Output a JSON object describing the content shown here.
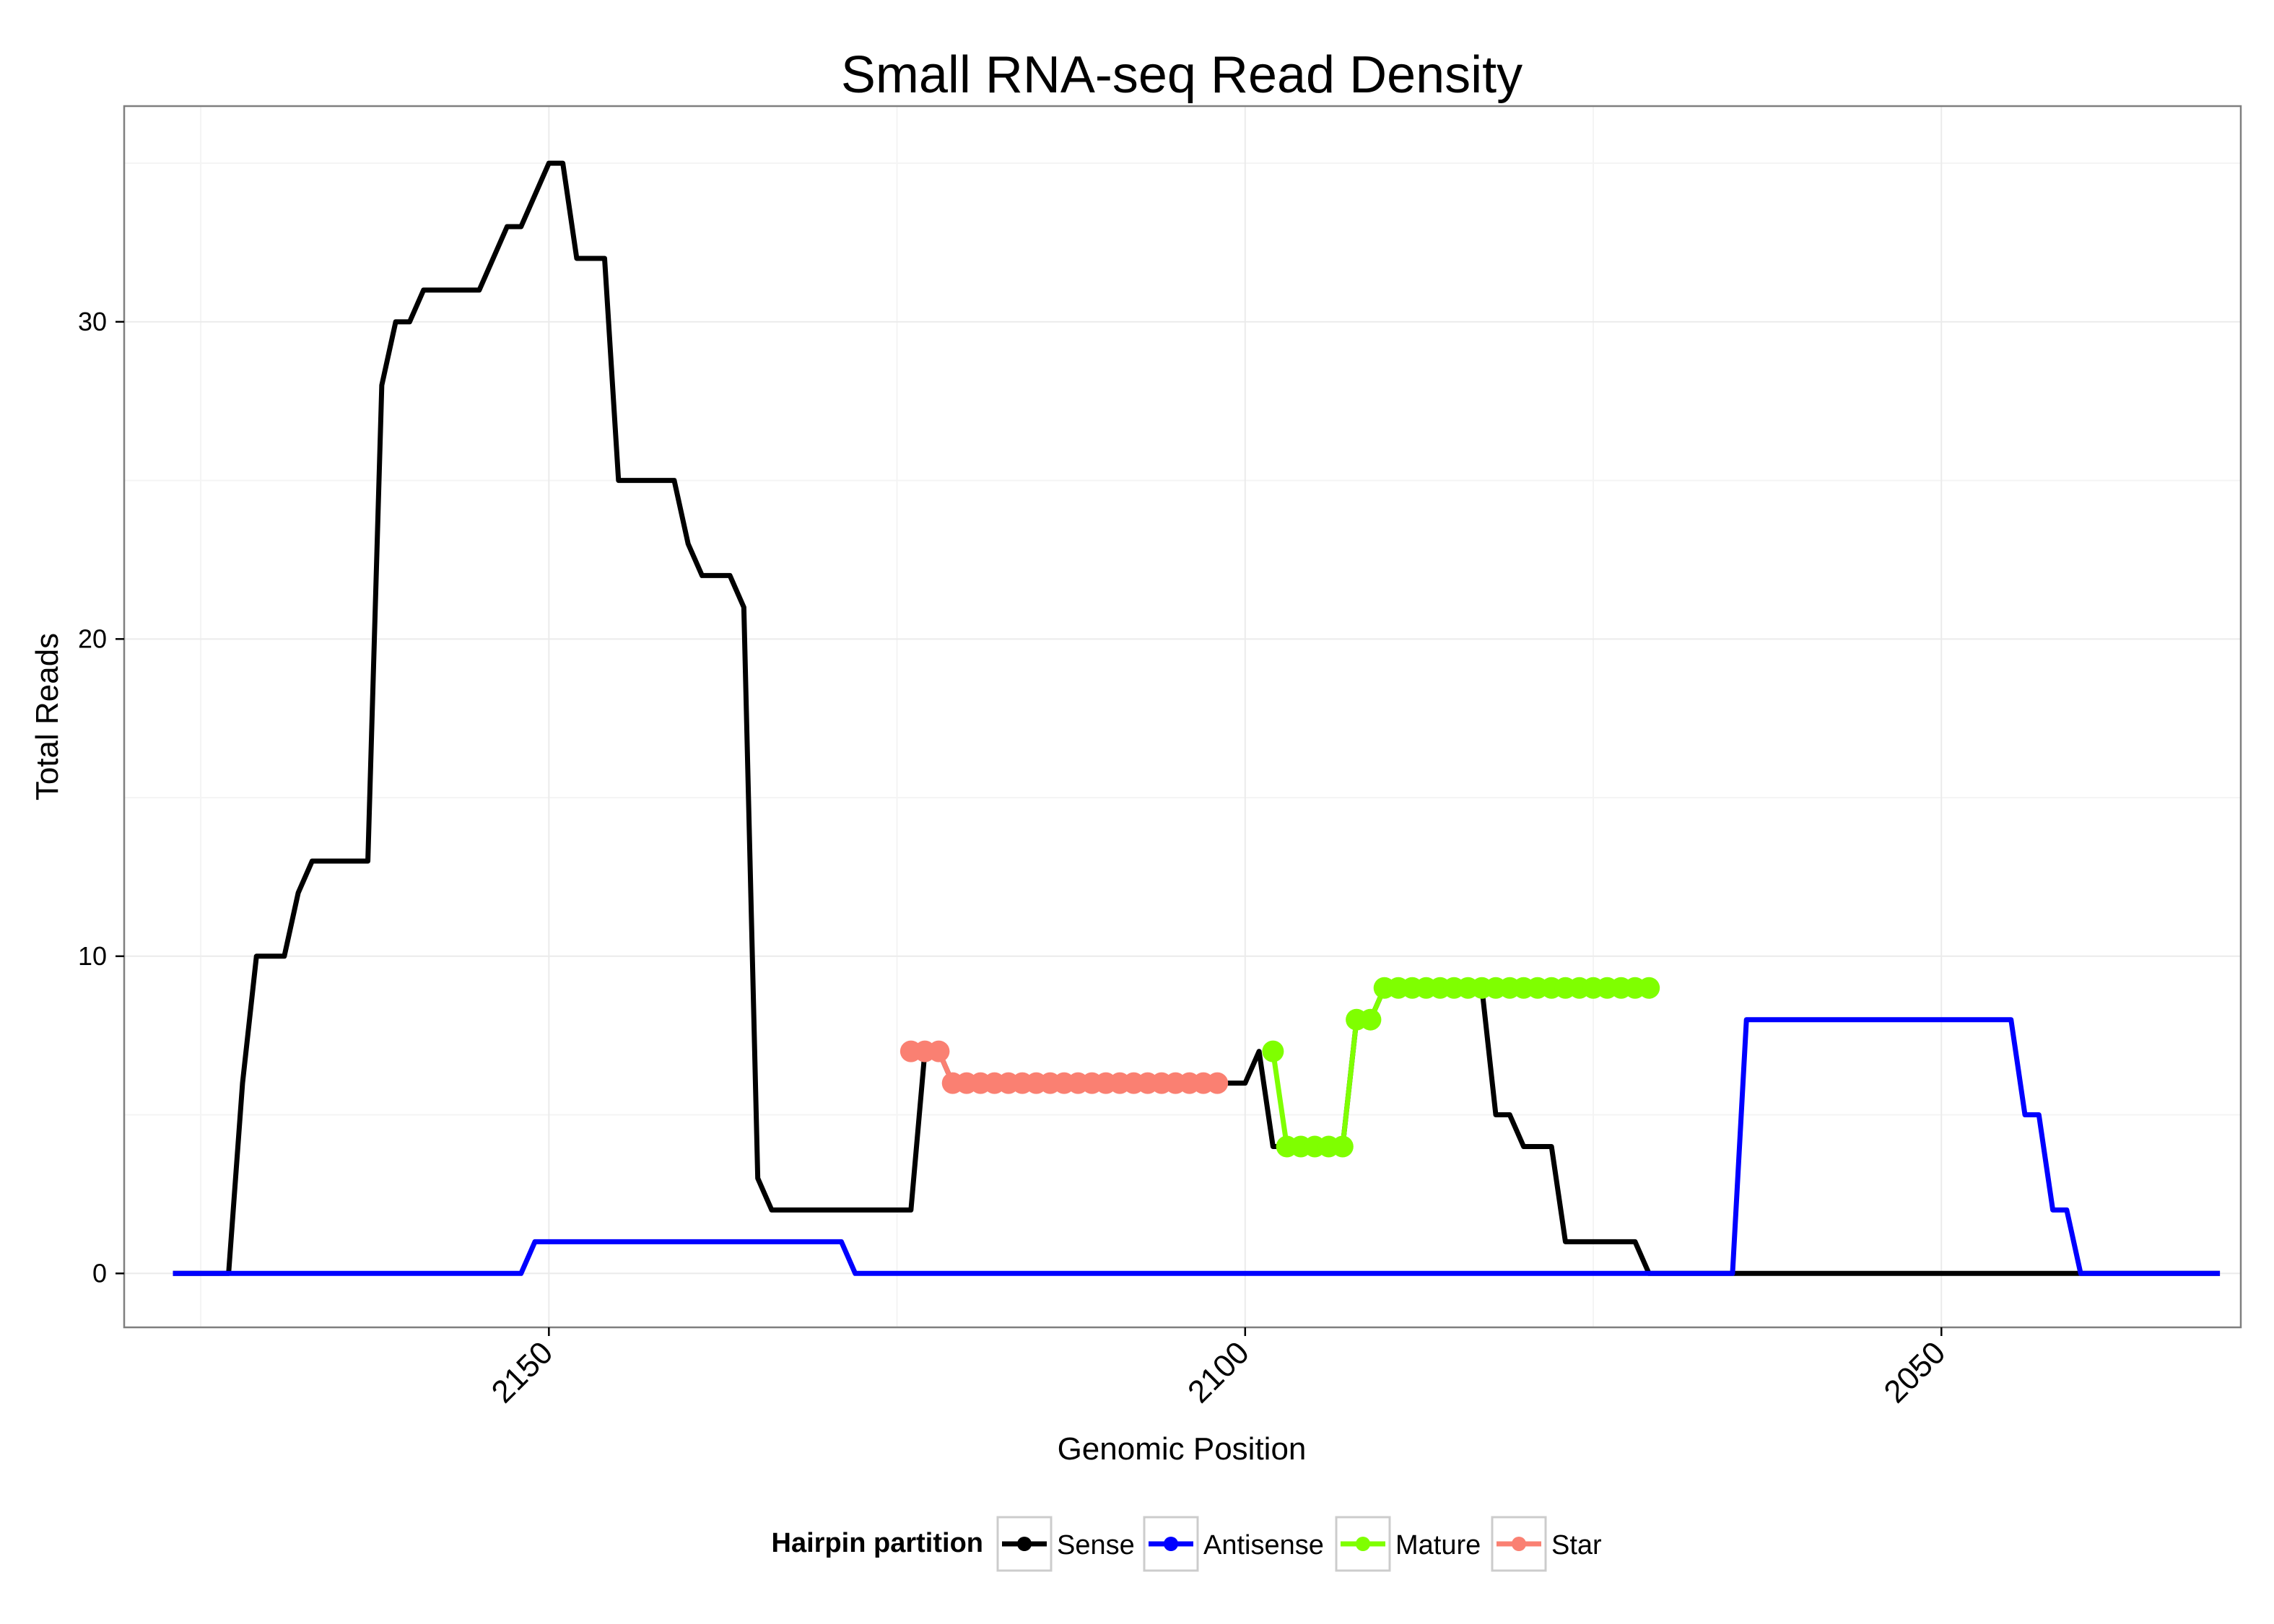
{
  "chart_data": {
    "type": "line",
    "title": "Small RNA-seq Read Density",
    "xlabel": "Genomic Position",
    "ylabel": "Total Reads",
    "x_reversed": true,
    "xlim": [
      2180.5,
      2028.5
    ],
    "ylim": [
      -1.7,
      36.8
    ],
    "x_ticks": [
      2150,
      2100,
      2050
    ],
    "y_ticks": [
      0,
      10,
      20,
      30
    ],
    "grid": true,
    "legend": {
      "title": "Hairpin partition",
      "position": "bottom",
      "entries": [
        {
          "name": "Sense",
          "color": "#000000"
        },
        {
          "name": "Antisense",
          "color": "#0000ff"
        },
        {
          "name": "Mature",
          "color": "#7fff00"
        },
        {
          "name": "Star",
          "color": "#fa8072"
        }
      ]
    },
    "series": [
      {
        "name": "Sense",
        "color": "#000000",
        "x": [
          2177,
          2173,
          2172,
          2171,
          2169,
          2168,
          2167,
          2163,
          2162,
          2161,
          2160,
          2159,
          2157,
          2155,
          2153,
          2152,
          2150,
          2149,
          2148,
          2146,
          2145,
          2144,
          2143,
          2141,
          2140,
          2139,
          2138,
          2137,
          2136,
          2135,
          2134,
          2133,
          2132,
          2124,
          2123,
          2122,
          2121,
          2100,
          2099,
          2098,
          2097,
          2093,
          2092,
          2091,
          2090,
          2089,
          2088,
          2083,
          2082,
          2081,
          2080,
          2079,
          2078,
          2077,
          2076,
          2072,
          2071,
          2070,
          2069,
          2030
        ],
        "y": [
          0,
          0,
          6,
          10,
          10,
          12,
          13,
          13,
          28,
          30,
          30,
          31,
          31,
          31,
          33,
          33,
          35,
          35,
          32,
          32,
          25,
          25,
          25,
          25,
          23,
          22,
          22,
          22,
          21,
          3,
          2,
          2,
          2,
          2,
          7,
          7,
          6,
          6,
          7,
          4,
          4,
          4,
          8,
          8,
          9,
          9,
          9,
          9,
          5,
          5,
          4,
          4,
          4,
          1,
          1,
          1,
          0,
          0,
          0,
          0
        ]
      },
      {
        "name": "Antisense",
        "color": "#0000ff",
        "x": [
          2177,
          2173,
          2153,
          2152,
          2151,
          2129,
          2128,
          2127,
          2065,
          2064,
          2063,
          2045,
          2044,
          2043,
          2042,
          2041,
          2040,
          2039,
          2030
        ],
        "y": [
          0,
          0,
          0,
          0,
          1,
          1,
          0,
          0,
          0,
          8,
          8,
          8,
          5,
          5,
          2,
          2,
          0,
          0,
          0
        ]
      },
      {
        "name": "Mature",
        "color": "#7fff00",
        "markers": true,
        "x": [
          2098,
          2097,
          2096,
          2095,
          2094,
          2093,
          2092,
          2091,
          2090,
          2089,
          2088,
          2087,
          2086,
          2085,
          2084,
          2083,
          2082,
          2081,
          2080,
          2079,
          2078,
          2077,
          2076,
          2075,
          2074,
          2073,
          2072,
          2071
        ],
        "y": [
          7,
          4,
          4,
          4,
          4,
          4,
          8,
          8,
          9,
          9,
          9,
          9,
          9,
          9,
          9,
          9,
          9,
          9,
          9,
          9,
          9,
          9,
          9,
          9,
          9,
          9,
          9,
          9
        ]
      },
      {
        "name": "Star",
        "color": "#fa8072",
        "markers": true,
        "x": [
          2124,
          2123,
          2122,
          2121,
          2120,
          2119,
          2118,
          2117,
          2116,
          2115,
          2114,
          2113,
          2112,
          2111,
          2110,
          2109,
          2108,
          2107,
          2106,
          2105,
          2104,
          2103,
          2102
        ],
        "y": [
          7,
          7,
          7,
          6,
          6,
          6,
          6,
          6,
          6,
          6,
          6,
          6,
          6,
          6,
          6,
          6,
          6,
          6,
          6,
          6,
          6,
          6,
          6
        ]
      }
    ]
  }
}
